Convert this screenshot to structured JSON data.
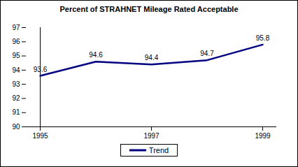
{
  "chart_data": {
    "type": "line",
    "title": "Percent of STRAHNET Mileage Rated Acceptable",
    "x": [
      1995,
      1996,
      1997,
      1998,
      1999
    ],
    "series": [
      {
        "name": "Trend",
        "color": "#000080",
        "values": [
          93.6,
          94.6,
          94.4,
          94.7,
          95.8
        ]
      }
    ],
    "xlim": [
      1995,
      1999
    ],
    "xticks": [
      1995,
      1997,
      1999
    ],
    "ylim": [
      90,
      97
    ],
    "yticks": [
      90,
      91,
      92,
      93,
      94,
      95,
      96,
      97
    ],
    "grid": false,
    "legend": "bottom",
    "data_labels": true
  }
}
